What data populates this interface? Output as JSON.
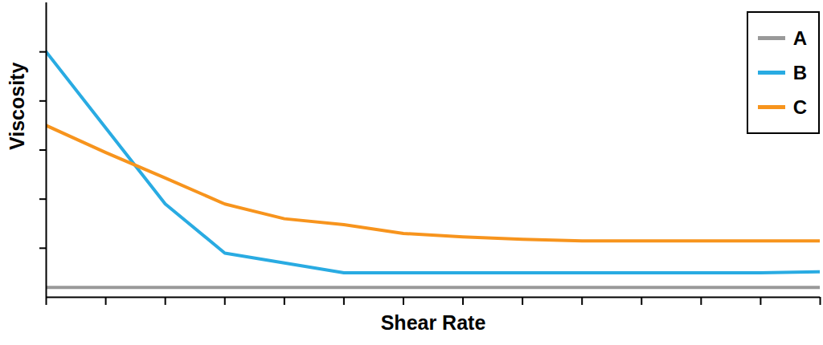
{
  "chart_data": {
    "type": "line",
    "x_label": "Shear Rate",
    "y_label": "Viscosity",
    "x": [
      0,
      1,
      2,
      3,
      4,
      5,
      6,
      7,
      8,
      9,
      10,
      11,
      12,
      13
    ],
    "xlim": [
      0,
      13
    ],
    "xticks": [
      0,
      1,
      2,
      3,
      4,
      5,
      6,
      7,
      8,
      9,
      10,
      11,
      12,
      13
    ],
    "ylim": [
      0,
      6
    ],
    "yticks": [
      1,
      2,
      3,
      4,
      5
    ],
    "tick_labels": false,
    "grid": false,
    "legend": "top-right",
    "series": [
      {
        "name": "A",
        "color": "#999999",
        "values": [
          0.2,
          0.2,
          0.2,
          0.2,
          0.2,
          0.2,
          0.2,
          0.2,
          0.2,
          0.2,
          0.2,
          0.2,
          0.2,
          0.2
        ]
      },
      {
        "name": "B",
        "color": "#29abe2",
        "values": [
          5.0,
          3.45,
          1.9,
          0.9,
          0.7,
          0.5,
          0.5,
          0.5,
          0.5,
          0.5,
          0.5,
          0.5,
          0.5,
          0.52
        ]
      },
      {
        "name": "C",
        "color": "#f7941d",
        "values": [
          3.5,
          2.95,
          2.43,
          1.9,
          1.6,
          1.48,
          1.3,
          1.23,
          1.18,
          1.15,
          1.15,
          1.15,
          1.15,
          1.15
        ]
      }
    ]
  }
}
